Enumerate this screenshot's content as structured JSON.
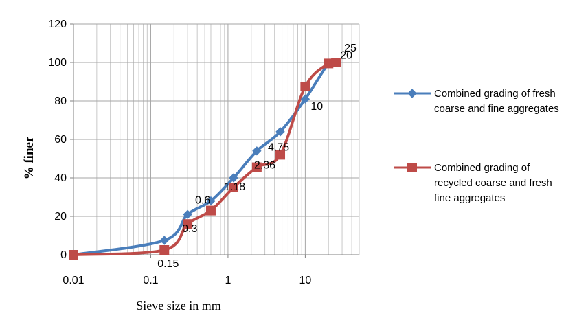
{
  "chart_data": {
    "type": "line",
    "xlabel": "Sieve size in mm",
    "ylabel": "% finer",
    "xscale": "log",
    "xlim": [
      0.01,
      50
    ],
    "ylim": [
      0,
      120
    ],
    "x_ticks": [
      "0.01",
      "0.1",
      "1",
      "10"
    ],
    "y_ticks": [
      0,
      20,
      40,
      60,
      80,
      100,
      120
    ],
    "grid": "log-vertical and horizontal",
    "legend_position": "right",
    "series": [
      {
        "name": "Combined grading of fresh coarse and fine aggregates",
        "legend_lines": [
          "Combined grading of fresh",
          "coarse and fine aggregates"
        ],
        "color": "#4a7ebb",
        "marker": "diamond",
        "x": [
          0.01,
          0.15,
          0.3,
          0.6,
          1.18,
          2.36,
          4.75,
          10,
          20,
          25
        ],
        "y": [
          0,
          7.5,
          21,
          28,
          40,
          54,
          64,
          81,
          99.5,
          100
        ]
      },
      {
        "name": "Combined grading of recycled coarse and fresh fine aggregates",
        "legend_lines": [
          "Combined grading of",
          "recycled coarse  and fresh",
          "fine aggregates"
        ],
        "color": "#be4b48",
        "marker": "square",
        "x": [
          0.01,
          0.15,
          0.3,
          0.6,
          1.18,
          2.36,
          4.75,
          10,
          20,
          25
        ],
        "y": [
          0,
          2.5,
          16,
          23,
          35,
          45.5,
          52,
          87.5,
          99.5,
          100
        ]
      }
    ],
    "point_labels": [
      "0.15",
      "0.3",
      "0.6",
      "1.18",
      "2.36",
      "4.75",
      "10",
      "20",
      "25"
    ]
  }
}
